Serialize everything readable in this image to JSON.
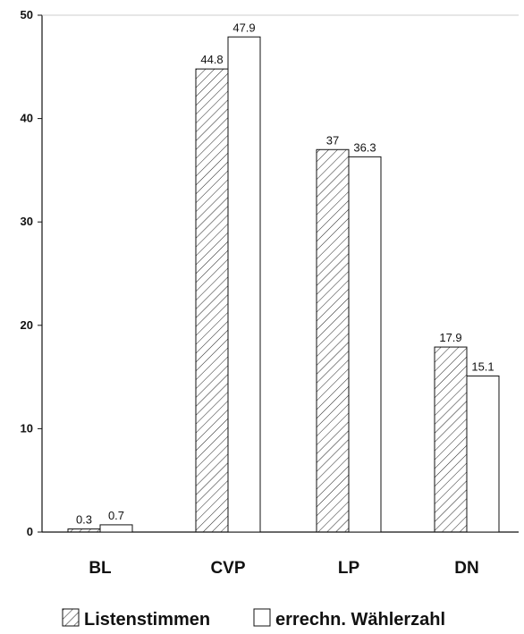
{
  "chart_data": {
    "type": "bar",
    "categories": [
      "BL",
      "CVP",
      "LP",
      "DN"
    ],
    "series": [
      {
        "name": "Listenstimmen",
        "values": [
          0.3,
          44.8,
          37,
          17.9
        ],
        "value_labels": [
          "0.3",
          "44.8",
          "37",
          "17.9"
        ],
        "fill": "hatched"
      },
      {
        "name": "errechn. Wählerzahl",
        "values": [
          0.7,
          47.9,
          36.3,
          15.1
        ],
        "value_labels": [
          "0.7",
          "47.9",
          "36.3",
          "15.1"
        ],
        "fill": "white"
      }
    ],
    "y_ticks": [
      "0",
      "10",
      "20",
      "30",
      "40",
      "50"
    ],
    "ylim": [
      0,
      50
    ],
    "grid": false,
    "legend_position": "bottom",
    "title": "",
    "xlabel": "",
    "ylabel": ""
  }
}
